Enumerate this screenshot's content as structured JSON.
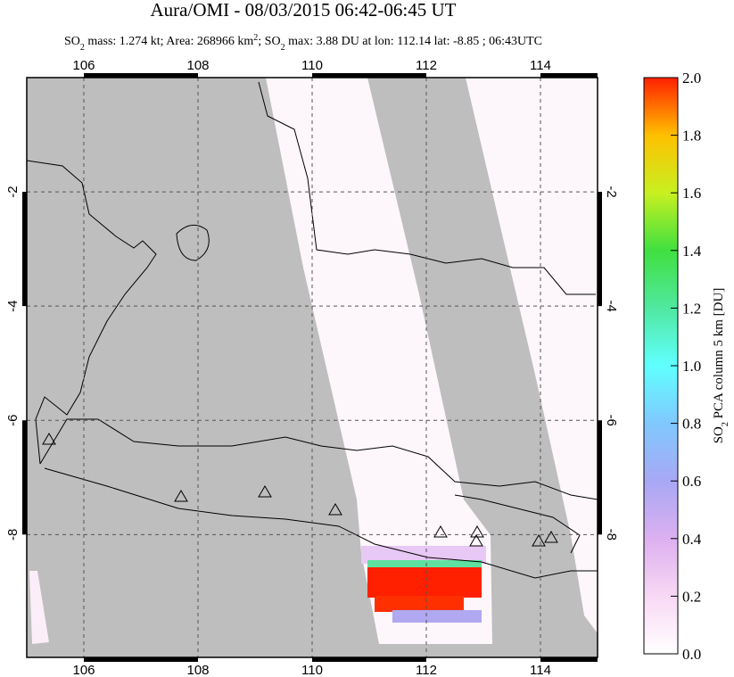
{
  "header": {
    "title": "Aura/OMI - 08/03/2015 06:42-06:45 UT",
    "subtitle": [
      "SO",
      "2",
      " mass: 1.274 kt; Area: 268966 km",
      "2",
      "; SO",
      "2",
      " max: 3.88 DU at lon: 112.14 lat: -8.85 ; 06:43UTC"
    ]
  },
  "map": {
    "xlim": [
      105,
      115
    ],
    "ylim": [
      -10.15,
      0
    ],
    "xticks": [
      106,
      108,
      110,
      112,
      114
    ],
    "yticks": [
      -2,
      -4,
      -6,
      -8
    ]
  },
  "colorbar": {
    "label": [
      "SO",
      "2",
      " PCA column 5 km [DU]"
    ],
    "lim": [
      0,
      2
    ],
    "ticks": [
      {
        "value": 0,
        "label": "0.0"
      },
      {
        "value": 0.2,
        "label": "0.2"
      },
      {
        "value": 0.4,
        "label": "0.4"
      },
      {
        "value": 0.6,
        "label": "0.6"
      },
      {
        "value": 0.8,
        "label": "0.8"
      },
      {
        "value": 1,
        "label": "1.0"
      },
      {
        "value": 1.2,
        "label": "1.2"
      },
      {
        "value": 1.4,
        "label": "1.4"
      },
      {
        "value": 1.6,
        "label": "1.6"
      },
      {
        "value": 1.8,
        "label": "1.8"
      },
      {
        "value": 2,
        "label": "2.0"
      }
    ]
  }
}
